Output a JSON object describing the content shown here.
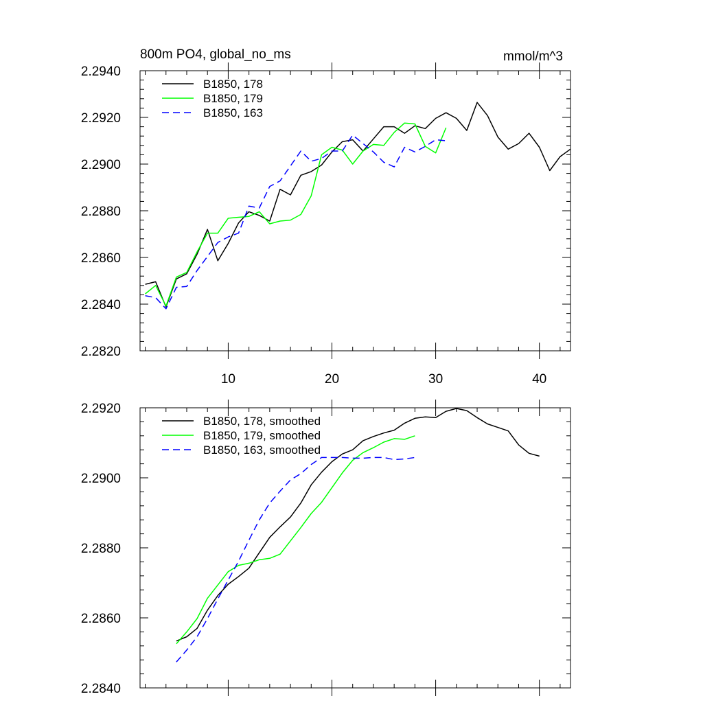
{
  "chart_data": [
    {
      "type": "line",
      "title": "800m PO4, global_no_ms",
      "units": "mmol/m^3",
      "xlim": [
        1.5,
        43
      ],
      "ylim": [
        2.282,
        2.294
      ],
      "x_tick_labels": [
        "10",
        "20",
        "30",
        "40"
      ],
      "y_tick_labels": [
        "2.2820",
        "2.2840",
        "2.2860",
        "2.2880",
        "2.2900",
        "2.2920",
        "2.2940"
      ],
      "legend_position": "top-left",
      "series": [
        {
          "name": "B1850, 178",
          "color": "#000000",
          "dash": "solid",
          "x": [
            2,
            3,
            4,
            5,
            6,
            7,
            8,
            9,
            10,
            11,
            12,
            13,
            14,
            15,
            16,
            17,
            18,
            19,
            20,
            21,
            22,
            23,
            24,
            25,
            26,
            27,
            28,
            29,
            30,
            31,
            32,
            33,
            34,
            35,
            36,
            37,
            38,
            39,
            40,
            41,
            42,
            43
          ],
          "values": [
            2.28485,
            2.28496,
            2.28388,
            2.28508,
            2.2853,
            2.28614,
            2.2872,
            2.28586,
            2.2866,
            2.28748,
            2.28796,
            2.2878,
            2.28756,
            2.28892,
            2.28868,
            2.28952,
            2.28968,
            2.28996,
            2.29052,
            2.29096,
            2.29104,
            2.29056,
            2.29108,
            2.2916,
            2.2916,
            2.29132,
            2.29164,
            2.29152,
            2.29196,
            2.2922,
            2.29196,
            2.29144,
            2.29264,
            2.29208,
            2.29116,
            2.29064,
            2.29088,
            2.29132,
            2.29072,
            2.28972,
            2.29032,
            2.29064
          ]
        },
        {
          "name": "B1850, 179",
          "color": "#00ff00",
          "dash": "solid",
          "x": [
            2,
            3,
            4,
            5,
            6,
            7,
            8,
            9,
            10,
            11,
            12,
            13,
            14,
            15,
            16,
            17,
            18,
            19,
            20,
            21,
            22,
            23,
            24,
            25,
            26,
            27,
            28,
            29,
            30,
            31
          ],
          "values": [
            2.28444,
            2.2848,
            2.28392,
            2.28516,
            2.28536,
            2.28624,
            2.28704,
            2.28704,
            2.28768,
            2.28772,
            2.28776,
            2.28796,
            2.28744,
            2.28756,
            2.2876,
            2.28784,
            2.28864,
            2.2904,
            2.29072,
            2.2906,
            2.29,
            2.29056,
            2.29084,
            2.2908,
            2.29136,
            2.29176,
            2.29172,
            2.29076,
            2.29048,
            2.29156
          ]
        },
        {
          "name": "B1850, 163",
          "color": "#0000ff",
          "dash": "dashed",
          "x": [
            2,
            3,
            4,
            5,
            6,
            7,
            8,
            9,
            10,
            11,
            12,
            13,
            14,
            15,
            16,
            17,
            18,
            19,
            20,
            21,
            22,
            23,
            24,
            25,
            26,
            27,
            28,
            29,
            30,
            31
          ],
          "values": [
            2.28436,
            2.28428,
            2.2838,
            2.28472,
            2.28476,
            2.28544,
            2.28604,
            2.28664,
            2.28688,
            2.28704,
            2.2882,
            2.28812,
            2.28904,
            2.28928,
            2.28992,
            2.29056,
            2.29012,
            2.29024,
            2.29056,
            2.29056,
            2.29124,
            2.29088,
            2.29052,
            2.29008,
            2.28988,
            2.29072,
            2.29052,
            2.29076,
            2.29104,
            2.291
          ]
        }
      ]
    },
    {
      "type": "line",
      "xlim": [
        1.5,
        43
      ],
      "ylim": [
        2.284,
        2.292
      ],
      "y_tick_labels": [
        "2.2840",
        "2.2860",
        "2.2880",
        "2.2900",
        "2.2920"
      ],
      "legend_position": "top-left",
      "series": [
        {
          "name": "B1850, 178, smoothed",
          "color": "#000000",
          "dash": "solid",
          "x": [
            5,
            6,
            7,
            8,
            9,
            10,
            11,
            12,
            13,
            14,
            15,
            16,
            17,
            18,
            19,
            20,
            21,
            22,
            23,
            24,
            25,
            26,
            27,
            28,
            29,
            30,
            31,
            32,
            33,
            34,
            35,
            36,
            37,
            38,
            39,
            40
          ],
          "values": [
            2.28534,
            2.28546,
            2.2857,
            2.28622,
            2.28664,
            2.28696,
            2.28718,
            2.28742,
            2.28786,
            2.2883,
            2.2886,
            2.28888,
            2.28928,
            2.2898,
            2.29016,
            2.29046,
            2.29068,
            2.2908,
            2.29106,
            2.29118,
            2.29128,
            2.29136,
            2.29156,
            2.2917,
            2.29174,
            2.29172,
            2.2919,
            2.29198,
            2.29192,
            2.29172,
            2.29154,
            2.29144,
            2.29134,
            2.29094,
            2.2907,
            2.29062
          ]
        },
        {
          "name": "B1850, 179, smoothed",
          "color": "#00ff00",
          "dash": "solid",
          "x": [
            5,
            6,
            7,
            8,
            9,
            10,
            11,
            12,
            13,
            14,
            15,
            16,
            17,
            18,
            19,
            20,
            21,
            22,
            23,
            24,
            25,
            26,
            27,
            28
          ],
          "values": [
            2.28526,
            2.2856,
            2.28598,
            2.28656,
            2.28694,
            2.28732,
            2.2875,
            2.28756,
            2.28766,
            2.2877,
            2.28782,
            2.2882,
            2.28858,
            2.28898,
            2.2893,
            2.28972,
            2.29014,
            2.2905,
            2.29072,
            2.29086,
            2.29102,
            2.29112,
            2.2911,
            2.2912
          ]
        },
        {
          "name": "B1850, 163, smoothed",
          "color": "#0000ff",
          "dash": "dashed",
          "x": [
            5,
            6,
            7,
            8,
            9,
            10,
            11,
            12,
            13,
            14,
            15,
            16,
            17,
            18,
            19,
            20,
            21,
            22,
            23,
            24,
            25,
            26,
            27,
            28
          ],
          "values": [
            2.28474,
            2.28508,
            2.28546,
            2.28598,
            2.28654,
            2.28708,
            2.28762,
            2.28822,
            2.2888,
            2.28928,
            2.28962,
            2.28994,
            2.29012,
            2.29038,
            2.29058,
            2.29058,
            2.29058,
            2.29056,
            2.29056,
            2.29058,
            2.29058,
            2.29052,
            2.29054,
            2.29058
          ]
        }
      ]
    }
  ]
}
